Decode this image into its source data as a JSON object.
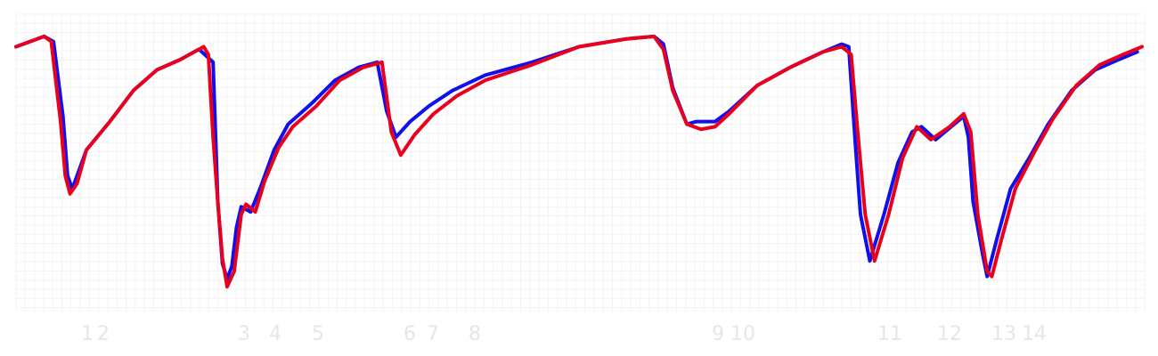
{
  "chart_data": {
    "type": "line",
    "title": "",
    "xlabel": "",
    "ylabel": "",
    "grid": true,
    "legend": "none",
    "x_ticks": [
      {
        "label": "1",
        "x": 1
      },
      {
        "label": "2",
        "x": 2
      },
      {
        "label": "3",
        "x": 3
      },
      {
        "label": "4",
        "x": 4
      },
      {
        "label": "5",
        "x": 5
      },
      {
        "label": "6",
        "x": 6
      },
      {
        "label": "7",
        "x": 7
      },
      {
        "label": "8",
        "x": 8
      },
      {
        "label": "9",
        "x": 9
      },
      {
        "label": "10",
        "x": 10
      },
      {
        "label": "11",
        "x": 11
      },
      {
        "label": "12",
        "x": 12
      },
      {
        "label": "13",
        "x": 13
      },
      {
        "label": "14",
        "x": 14
      }
    ],
    "series": [
      {
        "color": "#1010ee",
        "points": [
          [
            0.0,
            0.95
          ],
          [
            0.6,
            0.99
          ],
          [
            0.8,
            0.97
          ],
          [
            1.0,
            0.68
          ],
          [
            1.1,
            0.45
          ],
          [
            1.2,
            0.4
          ],
          [
            1.5,
            0.55
          ],
          [
            2.0,
            0.66
          ],
          [
            2.5,
            0.78
          ],
          [
            3.0,
            0.86
          ],
          [
            3.5,
            0.9
          ],
          [
            3.9,
            0.94
          ],
          [
            4.2,
            0.89
          ],
          [
            4.3,
            0.35
          ],
          [
            4.4,
            0.11
          ],
          [
            4.5,
            0.05
          ],
          [
            4.6,
            0.1
          ],
          [
            4.7,
            0.25
          ],
          [
            4.8,
            0.33
          ],
          [
            5.0,
            0.31
          ],
          [
            5.2,
            0.4
          ],
          [
            5.5,
            0.55
          ],
          [
            5.8,
            0.65
          ],
          [
            6.3,
            0.73
          ],
          [
            6.8,
            0.82
          ],
          [
            7.3,
            0.87
          ],
          [
            7.7,
            0.89
          ],
          [
            7.9,
            0.7
          ],
          [
            8.1,
            0.6
          ],
          [
            8.4,
            0.66
          ],
          [
            8.8,
            0.72
          ],
          [
            9.3,
            0.78
          ],
          [
            10.0,
            0.84
          ],
          [
            11.0,
            0.89
          ],
          [
            12.0,
            0.95
          ],
          [
            13.0,
            0.98
          ],
          [
            13.6,
            0.99
          ],
          [
            13.8,
            0.96
          ],
          [
            14.0,
            0.79
          ],
          [
            14.3,
            0.65
          ],
          [
            14.5,
            0.66
          ],
          [
            14.9,
            0.66
          ],
          [
            15.2,
            0.7
          ],
          [
            15.8,
            0.8
          ],
          [
            16.5,
            0.87
          ],
          [
            17.2,
            0.93
          ],
          [
            17.6,
            0.96
          ],
          [
            17.75,
            0.95
          ],
          [
            17.9,
            0.55
          ],
          [
            18.0,
            0.3
          ],
          [
            18.2,
            0.12
          ],
          [
            18.5,
            0.3
          ],
          [
            18.8,
            0.5
          ],
          [
            19.1,
            0.62
          ],
          [
            19.3,
            0.64
          ],
          [
            19.6,
            0.59
          ],
          [
            20.0,
            0.65
          ],
          [
            20.2,
            0.68
          ],
          [
            20.3,
            0.6
          ],
          [
            20.4,
            0.35
          ],
          [
            20.6,
            0.15
          ],
          [
            20.7,
            0.06
          ],
          [
            20.9,
            0.2
          ],
          [
            21.2,
            0.4
          ],
          [
            21.6,
            0.52
          ],
          [
            22.0,
            0.65
          ],
          [
            22.5,
            0.78
          ],
          [
            23.0,
            0.86
          ],
          [
            23.5,
            0.9
          ],
          [
            23.9,
            0.93
          ]
        ]
      },
      {
        "color": "#e8001c",
        "points": [
          [
            0.0,
            0.95
          ],
          [
            0.6,
            0.99
          ],
          [
            0.75,
            0.97
          ],
          [
            0.95,
            0.66
          ],
          [
            1.05,
            0.45
          ],
          [
            1.15,
            0.38
          ],
          [
            1.3,
            0.42
          ],
          [
            1.5,
            0.55
          ],
          [
            2.0,
            0.66
          ],
          [
            2.5,
            0.78
          ],
          [
            3.0,
            0.86
          ],
          [
            3.5,
            0.9
          ],
          [
            4.0,
            0.95
          ],
          [
            4.1,
            0.92
          ],
          [
            4.2,
            0.6
          ],
          [
            4.3,
            0.35
          ],
          [
            4.4,
            0.13
          ],
          [
            4.5,
            0.02
          ],
          [
            4.65,
            0.08
          ],
          [
            4.8,
            0.3
          ],
          [
            4.9,
            0.34
          ],
          [
            5.1,
            0.31
          ],
          [
            5.3,
            0.43
          ],
          [
            5.6,
            0.56
          ],
          [
            5.9,
            0.64
          ],
          [
            6.4,
            0.72
          ],
          [
            6.9,
            0.82
          ],
          [
            7.4,
            0.87
          ],
          [
            7.8,
            0.89
          ],
          [
            8.0,
            0.62
          ],
          [
            8.2,
            0.53
          ],
          [
            8.5,
            0.61
          ],
          [
            8.9,
            0.69
          ],
          [
            9.4,
            0.76
          ],
          [
            10.0,
            0.82
          ],
          [
            10.5,
            0.85
          ],
          [
            11.0,
            0.88
          ],
          [
            12.0,
            0.95
          ],
          [
            13.0,
            0.98
          ],
          [
            13.6,
            0.99
          ],
          [
            13.8,
            0.94
          ],
          [
            14.0,
            0.78
          ],
          [
            14.3,
            0.65
          ],
          [
            14.6,
            0.63
          ],
          [
            14.9,
            0.64
          ],
          [
            15.2,
            0.69
          ],
          [
            15.8,
            0.8
          ],
          [
            16.5,
            0.87
          ],
          [
            17.2,
            0.93
          ],
          [
            17.6,
            0.95
          ],
          [
            17.8,
            0.92
          ],
          [
            17.95,
            0.6
          ],
          [
            18.1,
            0.3
          ],
          [
            18.3,
            0.12
          ],
          [
            18.6,
            0.3
          ],
          [
            18.9,
            0.52
          ],
          [
            19.2,
            0.64
          ],
          [
            19.5,
            0.59
          ],
          [
            19.9,
            0.64
          ],
          [
            20.2,
            0.69
          ],
          [
            20.35,
            0.62
          ],
          [
            20.5,
            0.3
          ],
          [
            20.7,
            0.08
          ],
          [
            20.8,
            0.06
          ],
          [
            21.0,
            0.2
          ],
          [
            21.3,
            0.4
          ],
          [
            21.7,
            0.54
          ],
          [
            22.1,
            0.67
          ],
          [
            22.6,
            0.8
          ],
          [
            23.1,
            0.88
          ],
          [
            23.6,
            0.92
          ],
          [
            24.0,
            0.95
          ]
        ]
      }
    ]
  }
}
